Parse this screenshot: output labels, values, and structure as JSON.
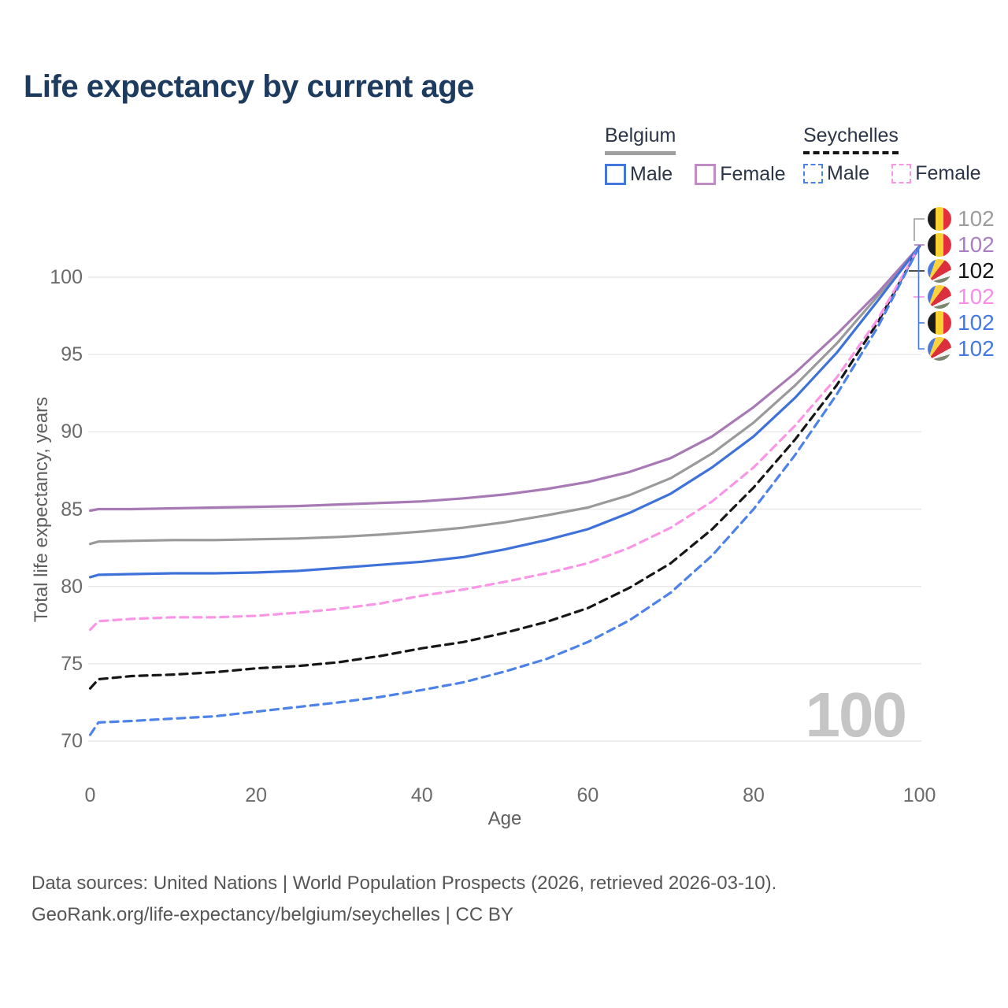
{
  "title": "Life expectancy by current age",
  "legend": {
    "groups": [
      {
        "label": "Belgium",
        "style": "solid",
        "items": [
          {
            "label": "Male"
          },
          {
            "label": "Female"
          }
        ]
      },
      {
        "label": "Seychelles",
        "style": "dashed",
        "items": [
          {
            "label": "Male"
          },
          {
            "label": "Female"
          }
        ]
      }
    ]
  },
  "watermark_age": "100",
  "end_labels": [
    {
      "value": "102",
      "flag": "belgium",
      "series": "Belgium",
      "color": "#9c9c9c"
    },
    {
      "value": "102",
      "flag": "belgium",
      "series": "Belgium Female",
      "color": "#a87fc2"
    },
    {
      "value": "102",
      "flag": "seychelles",
      "series": "Seychelles",
      "color": "#141414"
    },
    {
      "value": "102",
      "flag": "seychelles",
      "series": "Seychelles Female",
      "color": "#fa8ce8"
    },
    {
      "value": "102",
      "flag": "belgium",
      "series": "Belgium Male",
      "color": "#4479e4"
    },
    {
      "value": "102",
      "flag": "seychelles",
      "series": "Seychelles Male",
      "color": "#4479e4"
    }
  ],
  "footer": {
    "line1": "Data sources: United Nations | World Population Prospects (2026, retrieved 2026-03-10).",
    "line2": "GeoRank.org/life-expectancy/belgium/seychelles | CC BY"
  },
  "chart_data": {
    "type": "line",
    "title": "Life expectancy by current age",
    "xlabel": "Age",
    "ylabel": "Total life expectancy, years",
    "xlim": [
      0,
      100
    ],
    "ylim": [
      68.5,
      103
    ],
    "x_ticks": [
      0,
      20,
      40,
      60,
      80,
      100
    ],
    "y_ticks": [
      70,
      75,
      80,
      85,
      90,
      95,
      100
    ],
    "grid": "horizontal",
    "legend_position": "top-right",
    "x": [
      0,
      1,
      5,
      10,
      15,
      20,
      25,
      30,
      35,
      40,
      45,
      50,
      55,
      60,
      65,
      70,
      75,
      80,
      85,
      90,
      95,
      100
    ],
    "series": [
      {
        "name": "Belgium",
        "sex": "both",
        "country": "Belgium",
        "color": "#9a9a9a",
        "dash": "solid",
        "values": [
          82.75,
          82.9,
          82.95,
          83.0,
          83.0,
          83.05,
          83.1,
          83.2,
          83.35,
          83.55,
          83.8,
          84.15,
          84.6,
          85.1,
          85.9,
          87.0,
          88.6,
          90.6,
          93.0,
          95.7,
          98.8,
          102
        ]
      },
      {
        "name": "Belgium Female",
        "sex": "female",
        "country": "Belgium",
        "color": "#a87ab5",
        "dash": "solid",
        "values": [
          84.9,
          85.0,
          85.0,
          85.05,
          85.1,
          85.15,
          85.2,
          85.3,
          85.4,
          85.5,
          85.7,
          85.95,
          86.3,
          86.75,
          87.4,
          88.3,
          89.7,
          91.6,
          93.8,
          96.3,
          99.0,
          102
        ]
      },
      {
        "name": "Belgium Male",
        "sex": "male",
        "country": "Belgium",
        "color": "#3f72d9",
        "dash": "solid",
        "values": [
          80.6,
          80.75,
          80.8,
          80.85,
          80.85,
          80.9,
          81.0,
          81.2,
          81.4,
          81.6,
          81.9,
          82.4,
          83.0,
          83.7,
          84.75,
          86.0,
          87.7,
          89.7,
          92.2,
          95.1,
          98.5,
          102
        ]
      },
      {
        "name": "Seychelles",
        "sex": "both",
        "country": "Seychelles",
        "color": "#161616",
        "dash": "dashed",
        "values": [
          73.4,
          74.0,
          74.2,
          74.3,
          74.45,
          74.7,
          74.85,
          75.1,
          75.5,
          76.0,
          76.4,
          77.0,
          77.7,
          78.6,
          79.9,
          81.5,
          83.7,
          86.4,
          89.5,
          93.0,
          97.1,
          102
        ]
      },
      {
        "name": "Seychelles Female",
        "sex": "female",
        "country": "Seychelles",
        "color": "#fa96e6",
        "dash": "dashed",
        "values": [
          77.2,
          77.75,
          77.9,
          78.0,
          78.0,
          78.1,
          78.3,
          78.55,
          78.9,
          79.4,
          79.8,
          80.3,
          80.85,
          81.5,
          82.5,
          83.8,
          85.5,
          87.7,
          90.4,
          93.5,
          97.3,
          102
        ]
      },
      {
        "name": "Seychelles Male",
        "sex": "male",
        "country": "Seychelles",
        "color": "#4d82e8",
        "dash": "dashed",
        "values": [
          70.4,
          71.2,
          71.3,
          71.45,
          71.6,
          71.9,
          72.2,
          72.5,
          72.85,
          73.3,
          73.8,
          74.5,
          75.3,
          76.4,
          77.8,
          79.6,
          82.0,
          85.0,
          88.5,
          92.4,
          96.8,
          102
        ]
      }
    ]
  }
}
